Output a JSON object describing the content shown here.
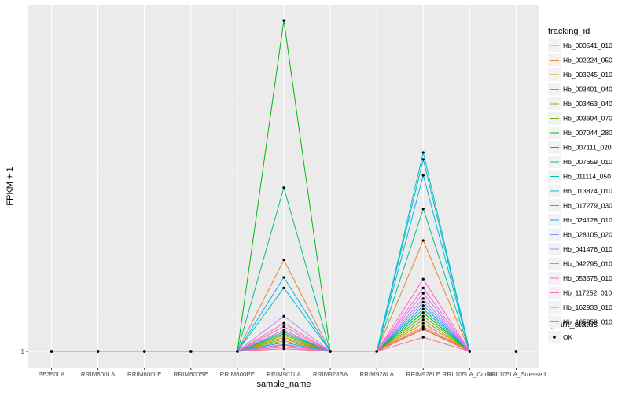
{
  "chart_data": {
    "type": "line",
    "xlabel": "sample_name",
    "ylabel": "FPKM + 1",
    "y_tick_labels": [
      "1"
    ],
    "categories": [
      "PB350LA",
      "RRIM600LA",
      "RRIM600LE",
      "RRIM600SE",
      "RRIM600PE",
      "RRIM901LA",
      "RRIM928BA",
      "RRIM928LA",
      "RRIM928LE",
      "RRII105LA_Control",
      "RRII105LA_Stressed"
    ],
    "legend_title": "tracking_id",
    "legend2_title": "quant_status",
    "legend2_label": "OK",
    "ylim": [
      0,
      20
    ],
    "series": [
      {
        "name": "Hb_000541_010",
        "color": "#F8766D",
        "values": [
          1,
          1,
          1,
          1,
          1,
          1.35,
          1,
          1,
          2.25,
          1,
          1
        ]
      },
      {
        "name": "Hb_002224_050",
        "color": "#E9842C",
        "values": [
          1,
          1,
          1,
          1,
          1,
          6.2,
          1,
          1,
          7.3,
          1,
          1
        ]
      },
      {
        "name": "Hb_003245_010",
        "color": "#D69100",
        "values": [
          1,
          1,
          1,
          1,
          1,
          1.6,
          1,
          1,
          2.3,
          1,
          1
        ]
      },
      {
        "name": "Hb_003401_040",
        "color": "#BC9D00",
        "values": [
          1,
          1,
          1,
          1,
          1,
          1.8,
          1,
          1,
          2.6,
          1,
          1
        ]
      },
      {
        "name": "Hb_003463_040",
        "color": "#9CA700",
        "values": [
          1,
          1,
          1,
          1,
          1,
          1.9,
          1,
          1,
          2.8,
          1,
          1
        ]
      },
      {
        "name": "Hb_003694_070",
        "color": "#6FB000",
        "values": [
          1,
          1,
          1,
          1,
          1,
          1.7,
          1,
          1,
          3.0,
          1,
          1
        ]
      },
      {
        "name": "Hb_007044_280",
        "color": "#00B813",
        "values": [
          1,
          1,
          1,
          1,
          1,
          19.8,
          1,
          1,
          3.2,
          1,
          1
        ]
      },
      {
        "name": "Hb_007111_020",
        "color": "#00BD61",
        "values": [
          1,
          1,
          1,
          1,
          1,
          2.0,
          1,
          1,
          3.4,
          1,
          1
        ]
      },
      {
        "name": "Hb_007659_010",
        "color": "#00C08E",
        "values": [
          1,
          1,
          1,
          1,
          1,
          10.3,
          1,
          1,
          9.1,
          1,
          1
        ]
      },
      {
        "name": "Hb_011114_050",
        "color": "#00C0B4",
        "values": [
          1,
          1,
          1,
          1,
          1,
          2.1,
          1,
          1,
          11.9,
          1,
          1
        ]
      },
      {
        "name": "Hb_013874_010",
        "color": "#00BDD4",
        "values": [
          1,
          1,
          1,
          1,
          1,
          4.6,
          1,
          1,
          12.3,
          1,
          1
        ]
      },
      {
        "name": "Hb_017279_030",
        "color": "#00B5EE",
        "values": [
          1,
          1,
          1,
          1,
          1,
          5.2,
          1,
          1,
          11.0,
          1,
          1
        ]
      },
      {
        "name": "Hb_024128_010",
        "color": "#00A7FF",
        "values": [
          1,
          1,
          1,
          1,
          1,
          1.5,
          1,
          1,
          3.6,
          1,
          1
        ]
      },
      {
        "name": "Hb_028105_020",
        "color": "#7F96FF",
        "values": [
          1,
          1,
          1,
          1,
          1,
          1.4,
          1,
          1,
          3.8,
          1,
          1
        ]
      },
      {
        "name": "Hb_041476_010",
        "color": "#BC81FF",
        "values": [
          1,
          1,
          1,
          1,
          1,
          3.0,
          1,
          1,
          4.0,
          1,
          1
        ]
      },
      {
        "name": "Hb_042795_010",
        "color": "#E26EF7",
        "values": [
          1,
          1,
          1,
          1,
          1,
          2.2,
          1,
          1,
          4.3,
          1,
          1
        ]
      },
      {
        "name": "Hb_053575_010",
        "color": "#F863DF",
        "values": [
          1,
          1,
          1,
          1,
          1,
          1.25,
          1,
          1,
          4.6,
          1,
          1
        ]
      },
      {
        "name": "Hb_117252_010",
        "color": "#FF62BF",
        "values": [
          1,
          1,
          1,
          1,
          1,
          2.4,
          1,
          1,
          5.1,
          1,
          1
        ]
      },
      {
        "name": "Hb_162933_010",
        "color": "#FF6A9A",
        "values": [
          1,
          1,
          1,
          1,
          1,
          2.6,
          1,
          1,
          2.4,
          1,
          1
        ]
      },
      {
        "name": "Hb_165958_010",
        "color": "#FF6C91",
        "values": [
          1,
          1,
          1,
          1,
          1,
          1.15,
          1,
          1,
          1.8,
          1,
          1
        ]
      }
    ]
  }
}
